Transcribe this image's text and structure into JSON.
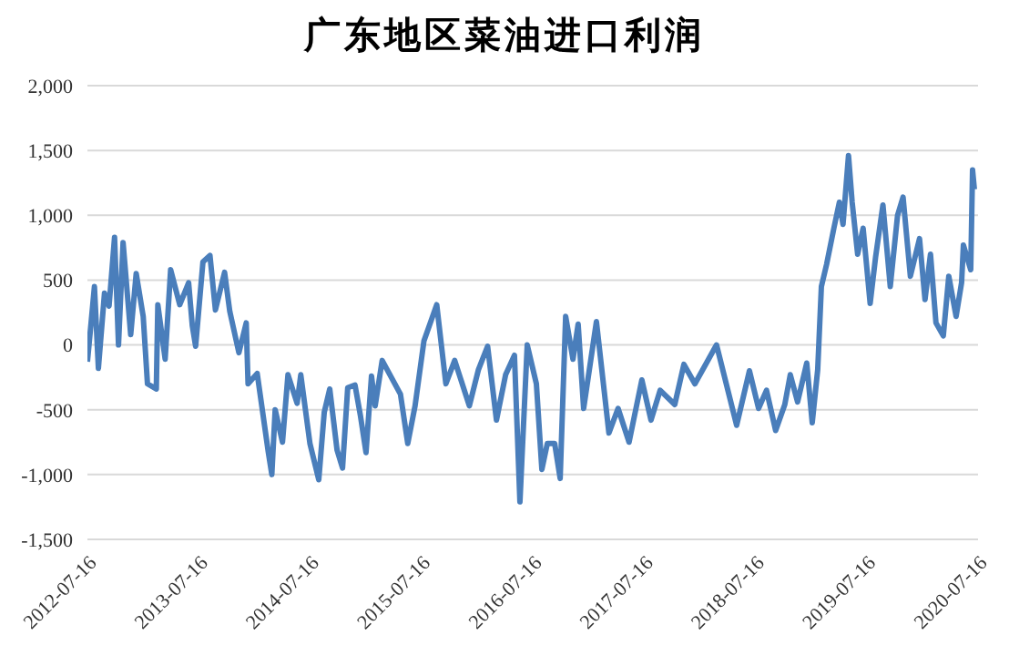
{
  "chart_data": {
    "type": "line",
    "title": "广东地区菜油进口利润",
    "x": [
      "2012-07-16",
      "2012-07-28",
      "2012-08-08",
      "2012-08-21",
      "2012-09-10",
      "2012-09-25",
      "2012-10-13",
      "2012-10-26",
      "2012-11-10",
      "2012-12-05",
      "2012-12-23",
      "2013-01-15",
      "2013-01-29",
      "2013-02-27",
      "2013-03-04",
      "2013-03-28",
      "2013-04-15",
      "2013-05-15",
      "2013-06-13",
      "2013-06-25",
      "2013-07-06",
      "2013-07-30",
      "2013-08-22",
      "2013-09-09",
      "2013-10-09",
      "2013-10-26",
      "2013-11-25",
      "2013-12-19",
      "2013-12-25",
      "2014-01-24",
      "2014-03-01",
      "2014-03-13",
      "2014-03-24",
      "2014-04-17",
      "2014-05-05",
      "2014-06-04",
      "2014-06-16",
      "2014-07-16",
      "2014-08-14",
      "2014-09-01",
      "2014-09-19",
      "2014-10-13",
      "2014-10-31",
      "2014-11-17",
      "2014-12-11",
      "2014-12-29",
      "2015-01-16",
      "2015-02-03",
      "2015-02-15",
      "2015-03-10",
      "2015-05-09",
      "2015-06-02",
      "2015-06-26",
      "2015-07-25",
      "2015-09-05",
      "2015-10-05",
      "2015-11-03",
      "2015-12-21",
      "2016-01-20",
      "2016-02-19",
      "2016-03-19",
      "2016-04-18",
      "2016-05-17",
      "2016-06-04",
      "2016-06-28",
      "2016-07-28",
      "2016-08-15",
      "2016-09-02",
      "2016-09-26",
      "2016-10-14",
      "2016-11-01",
      "2016-11-25",
      "2016-12-12",
      "2016-12-30",
      "2017-02-10",
      "2017-03-23",
      "2017-04-22",
      "2017-05-28",
      "2017-07-09",
      "2017-08-08",
      "2017-09-07",
      "2017-10-25",
      "2017-11-24",
      "2017-12-30",
      "2018-03-11",
      "2018-05-16",
      "2018-06-27",
      "2018-07-27",
      "2018-08-22",
      "2018-09-21",
      "2018-10-21",
      "2018-11-08",
      "2018-12-02",
      "2019-01-01",
      "2019-01-19",
      "2019-02-06",
      "2019-02-18",
      "2019-03-07",
      "2019-03-31",
      "2019-04-18",
      "2019-04-30",
      "2019-05-18",
      "2019-05-30",
      "2019-06-17",
      "2019-07-05",
      "2019-07-28",
      "2019-08-15",
      "2019-09-08",
      "2019-10-02",
      "2019-10-26",
      "2019-11-13",
      "2019-12-07",
      "2020-01-06",
      "2020-01-24",
      "2020-02-11",
      "2020-02-29",
      "2020-03-24",
      "2020-04-11",
      "2020-05-05",
      "2020-05-23",
      "2020-05-29",
      "2020-06-22",
      "2020-06-28",
      "2020-07-04"
    ],
    "series": [
      {
        "color": "#4a7ebb",
        "values": [
          -130,
          170,
          450,
          -180,
          400,
          300,
          830,
          0,
          790,
          80,
          550,
          220,
          -300,
          -340,
          310,
          -110,
          580,
          310,
          480,
          150,
          -10,
          640,
          690,
          270,
          560,
          260,
          -60,
          170,
          -300,
          -220,
          -820,
          -1000,
          -500,
          -750,
          -230,
          -450,
          -230,
          -760,
          -1040,
          -520,
          -340,
          -810,
          -950,
          -330,
          -310,
          -550,
          -830,
          -240,
          -470,
          -120,
          -380,
          -760,
          -470,
          30,
          310,
          -300,
          -120,
          -470,
          -190,
          -10,
          -580,
          -230,
          -80,
          -1210,
          0,
          -300,
          -960,
          -760,
          -760,
          -1030,
          220,
          -110,
          160,
          -490,
          180,
          -680,
          -490,
          -750,
          -270,
          -580,
          -350,
          -460,
          -150,
          -300,
          0,
          -620,
          -200,
          -490,
          -350,
          -660,
          -460,
          -230,
          -440,
          -140,
          -600,
          -190,
          450,
          620,
          900,
          1100,
          930,
          1460,
          1100,
          700,
          900,
          320,
          680,
          1080,
          450,
          1000,
          1140,
          530,
          820,
          350,
          700,
          170,
          70,
          530,
          220,
          480,
          770,
          580,
          1350,
          1200
        ]
      }
    ],
    "xlim": [
      "2012-07-16",
      "2020-07-16"
    ],
    "xticks": [
      {
        "value": "2012-07-16",
        "label": "2012-07-16"
      },
      {
        "value": "2013-07-16",
        "label": "2013-07-16"
      },
      {
        "value": "2014-07-16",
        "label": "2014-07-16"
      },
      {
        "value": "2015-07-16",
        "label": "2015-07-16"
      },
      {
        "value": "2016-07-16",
        "label": "2016-07-16"
      },
      {
        "value": "2017-07-16",
        "label": "2017-07-16"
      },
      {
        "value": "2018-07-16",
        "label": "2018-07-16"
      },
      {
        "value": "2019-07-16",
        "label": "2019-07-16"
      },
      {
        "value": "2020-07-16",
        "label": "2020-07-16"
      }
    ],
    "ylim": [
      -1500,
      2000
    ],
    "yticks": [
      {
        "value": -1500,
        "label": "-1,500"
      },
      {
        "value": -1000,
        "label": "-1,000"
      },
      {
        "value": -500,
        "label": "-500"
      },
      {
        "value": 0,
        "label": "0"
      },
      {
        "value": 500,
        "label": "500"
      },
      {
        "value": 1000,
        "label": "1,000"
      },
      {
        "value": 1500,
        "label": "1,500"
      },
      {
        "value": 2000,
        "label": "2,000"
      }
    ],
    "grid": "y",
    "marker": "none",
    "line_style": "solid"
  }
}
